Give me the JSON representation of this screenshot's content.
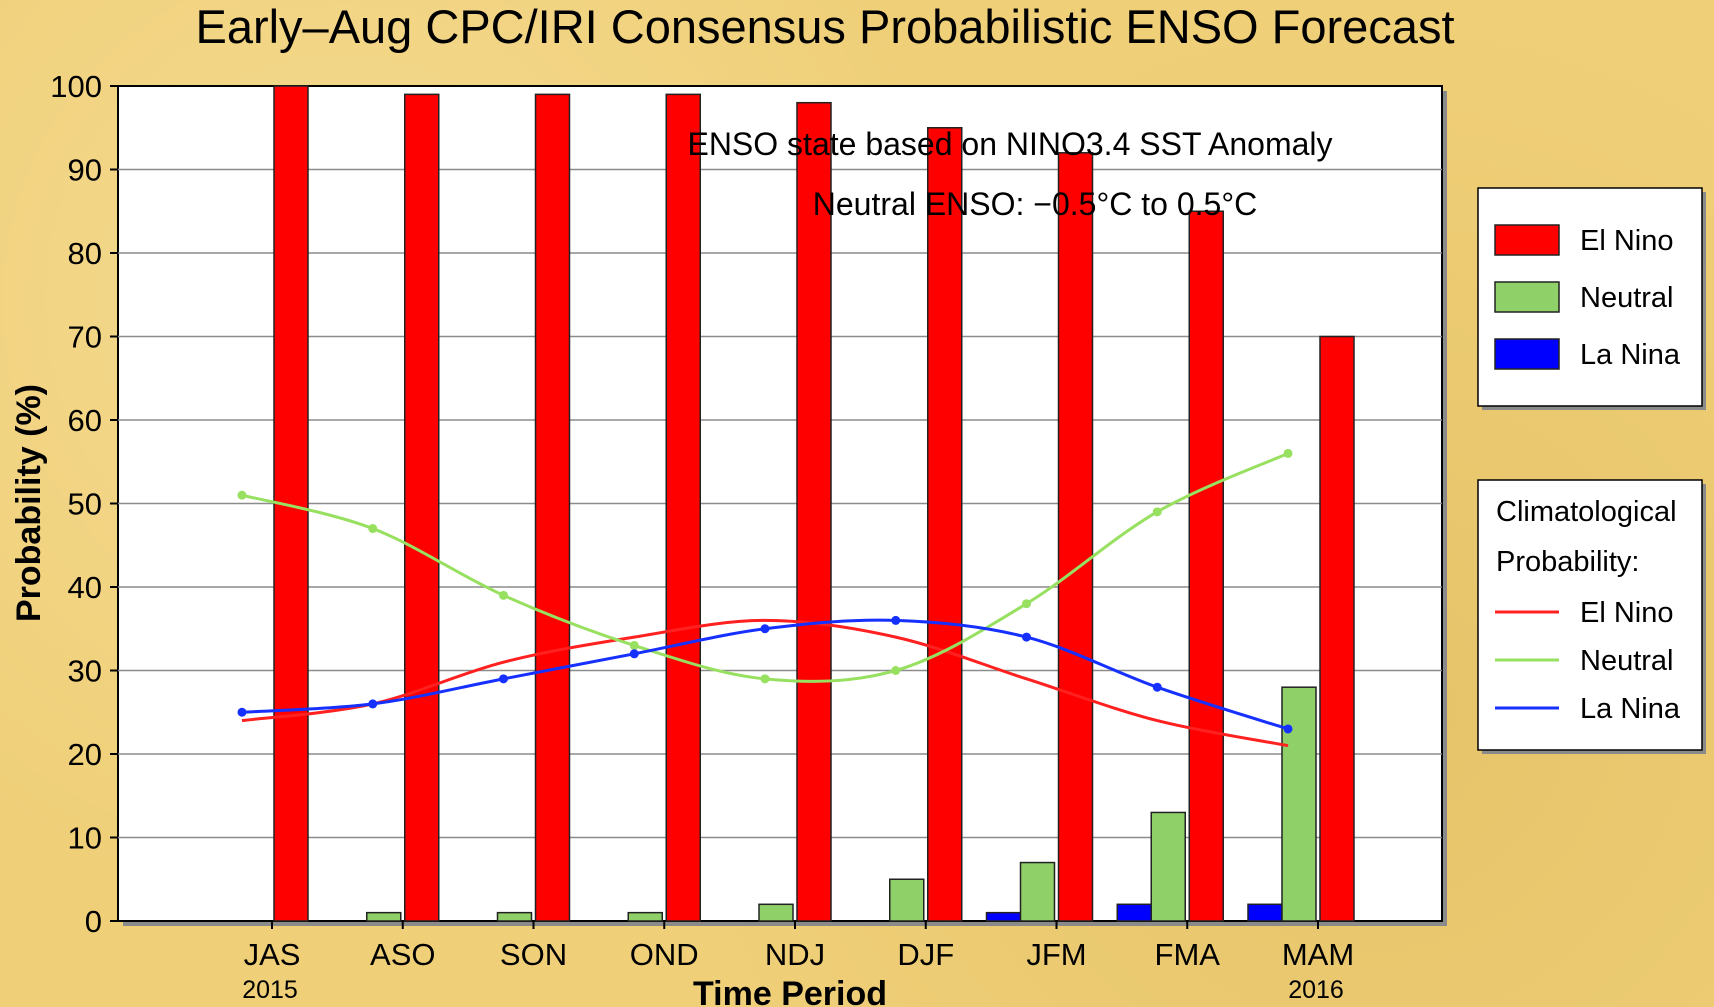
{
  "chart_data": {
    "type": "bar",
    "title": "Early–Aug CPC/IRI Consensus Probabilistic ENSO Forecast",
    "xlabel": "Time Period",
    "ylabel": "Probability (%)",
    "ylim": [
      0,
      100
    ],
    "yticks": [
      "0",
      "10",
      "20",
      "30",
      "40",
      "50",
      "60",
      "70",
      "80",
      "90",
      "100"
    ],
    "categories": [
      "JAS",
      "ASO",
      "SON",
      "OND",
      "NDJ",
      "DJF",
      "JFM",
      "FMA",
      "MAM"
    ],
    "year_labels": [
      {
        "category_index": 0,
        "text": "2015"
      },
      {
        "category_index": 8,
        "text": "2016"
      }
    ],
    "grid": true,
    "bar_series": [
      {
        "name": "La Nina",
        "color": "#0000ff",
        "values": [
          0,
          0,
          0,
          0,
          0,
          0,
          1,
          2,
          2
        ]
      },
      {
        "name": "Neutral",
        "color": "#90d068",
        "values": [
          0,
          1,
          1,
          1,
          2,
          5,
          7,
          13,
          28
        ]
      },
      {
        "name": "El Nino",
        "color": "#ff0000",
        "values": [
          100,
          99,
          99,
          99,
          98,
          95,
          92,
          85,
          70
        ]
      }
    ],
    "line_series": [
      {
        "name": "El Nino",
        "color": "#ff2020",
        "markers": false,
        "values": [
          24,
          26,
          31,
          34,
          36,
          34,
          29,
          24,
          21
        ]
      },
      {
        "name": "Neutral",
        "color": "#98e060",
        "markers": true,
        "values": [
          51,
          47,
          39,
          33,
          29,
          30,
          38,
          49,
          56
        ]
      },
      {
        "name": "La Nina",
        "color": "#1530ff",
        "markers": true,
        "values": [
          25,
          26,
          29,
          32,
          35,
          36,
          34,
          28,
          23
        ]
      }
    ],
    "annotations": [
      "ENSO state based on NINO3.4 SST Anomaly",
      "Neutral ENSO: −0.5°C to 0.5°C"
    ],
    "legend_bars": {
      "placement": "right",
      "entries": [
        {
          "label": "El Nino",
          "color": "#ff0000"
        },
        {
          "label": "Neutral",
          "color": "#90d068"
        },
        {
          "label": "La Nina",
          "color": "#0000ff"
        }
      ]
    },
    "legend_lines": {
      "placement": "right",
      "title_lines": [
        "Climatological",
        "Probability:"
      ],
      "entries": [
        {
          "label": "El Nino",
          "color": "#ff2020"
        },
        {
          "label": "Neutral",
          "color": "#98e060"
        },
        {
          "label": "La Nina",
          "color": "#1530ff"
        }
      ]
    }
  }
}
